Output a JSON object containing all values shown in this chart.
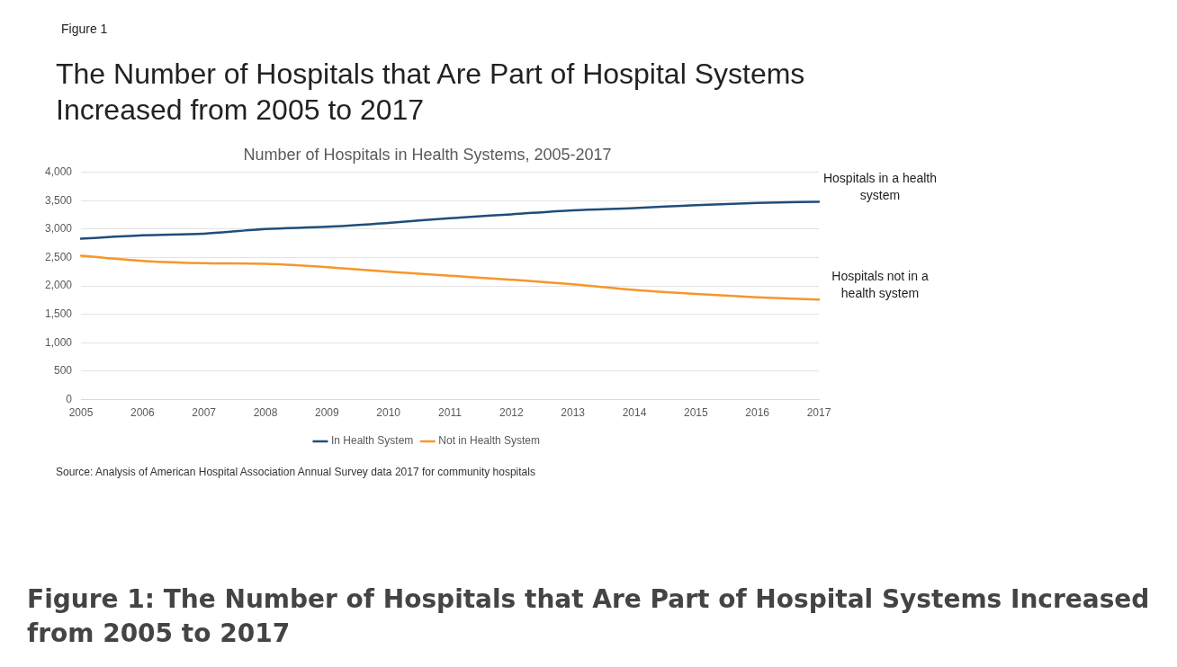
{
  "chart_data": {
    "type": "line",
    "title": "The Number of Hospitals that Are Part of Hospital Systems Increased from 2005 to 2017",
    "subtitle": "Number of Hospitals in Health Systems, 2005-2017",
    "categories": [
      "2005",
      "2006",
      "2007",
      "2008",
      "2009",
      "2010",
      "2011",
      "2012",
      "2013",
      "2014",
      "2015",
      "2016",
      "2017"
    ],
    "series": [
      {
        "name": "In Health System",
        "color": "#1f4e79",
        "values": [
          2830,
          2890,
          2920,
          3000,
          3040,
          3110,
          3190,
          3260,
          3330,
          3370,
          3420,
          3460,
          3480
        ]
      },
      {
        "name": "Not in Health System",
        "color": "#f7962a",
        "values": [
          2530,
          2440,
          2400,
          2390,
          2330,
          2250,
          2180,
          2110,
          2030,
          1930,
          1860,
          1800,
          1760
        ]
      }
    ],
    "ylim": [
      0,
      4000
    ],
    "yticks": [
      {
        "value": 0,
        "label": "0"
      },
      {
        "value": 500,
        "label": "500"
      },
      {
        "value": 1000,
        "label": "1,000"
      },
      {
        "value": 1500,
        "label": "1,500"
      },
      {
        "value": 2000,
        "label": "2,000"
      },
      {
        "value": 2500,
        "label": "2,500"
      },
      {
        "value": 3000,
        "label": "3,000"
      },
      {
        "value": 3500,
        "label": "3,500"
      },
      {
        "value": 4000,
        "label": "4,000"
      }
    ],
    "grid": "y",
    "legend": "bottom",
    "marker": "none",
    "line_style": "solid",
    "annotations": [
      "Figure 1",
      {
        "text": "Hospitals in a health system",
        "x": "2017",
        "y": 3480
      },
      {
        "text": "Hospitals not in a health system",
        "x": "2017",
        "y": 1760
      },
      "Source: Analysis of American Hospital Association Annual Survey data 2017 for community hospitals",
      "Figure 1: The Number of Hospitals that Are Part of Hospital Systems Increased from 2005 to 2017"
    ]
  }
}
